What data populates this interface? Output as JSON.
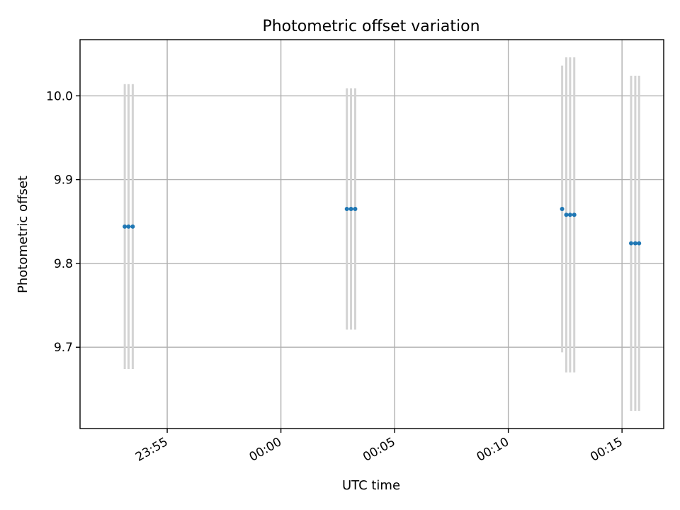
{
  "chart_data": {
    "type": "scatter",
    "title": "Photometric offset variation",
    "xlabel": "UTC time",
    "ylabel": "Photometric offset",
    "x_is_time": true,
    "xlim": [
      "23:51:10",
      "00:16:50"
    ],
    "ylim": [
      9.603,
      10.067
    ],
    "xticks": [
      "23:55",
      "00:00",
      "00:05",
      "00:10",
      "00:15"
    ],
    "yticks": [
      "9.7",
      "9.8",
      "9.9",
      "10.0"
    ],
    "grid": true,
    "colors": {
      "point": "#1f77b4",
      "errorbar": "#d3d3d3"
    },
    "points": [
      {
        "x": "23:53:08",
        "y": 9.844,
        "err_low": 9.674,
        "err_high": 10.014
      },
      {
        "x": "23:53:18",
        "y": 9.844,
        "err_low": 9.674,
        "err_high": 10.014
      },
      {
        "x": "23:53:29",
        "y": 9.844,
        "err_low": 9.674,
        "err_high": 10.014
      },
      {
        "x": "00:02:54",
        "y": 9.865,
        "err_low": 9.721,
        "err_high": 10.009
      },
      {
        "x": "00:03:05",
        "y": 9.865,
        "err_low": 9.721,
        "err_high": 10.009
      },
      {
        "x": "00:03:16",
        "y": 9.865,
        "err_low": 9.721,
        "err_high": 10.009
      },
      {
        "x": "00:12:22",
        "y": 9.865,
        "err_low": 9.694,
        "err_high": 10.036
      },
      {
        "x": "00:12:33",
        "y": 9.858,
        "err_low": 9.67,
        "err_high": 10.046
      },
      {
        "x": "00:12:43",
        "y": 9.858,
        "err_low": 9.67,
        "err_high": 10.046
      },
      {
        "x": "00:12:54",
        "y": 9.858,
        "err_low": 9.67,
        "err_high": 10.046
      },
      {
        "x": "00:15:24",
        "y": 9.824,
        "err_low": 9.624,
        "err_high": 10.024
      },
      {
        "x": "00:15:35",
        "y": 9.824,
        "err_low": 9.624,
        "err_high": 10.024
      },
      {
        "x": "00:15:45",
        "y": 9.824,
        "err_low": 9.624,
        "err_high": 10.024
      }
    ]
  }
}
